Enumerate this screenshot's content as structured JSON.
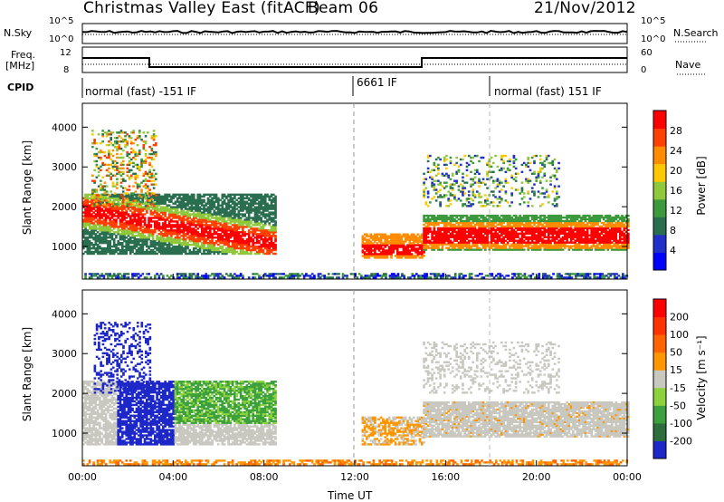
{
  "header": {
    "title": "Christmas Valley East (fitACF)",
    "beam": "Beam 06",
    "date": "21/Nov/2012"
  },
  "top_panel": {
    "left_label": "N.Sky",
    "right_label": "N.Search",
    "left_ticks": [
      "10^5",
      "10^0"
    ],
    "right_ticks": [
      "10^5",
      "10^0"
    ]
  },
  "freq_panel": {
    "left_label_1": "Freq.",
    "left_label_2": "[MHz]",
    "right_label": "Nave",
    "left_ticks": [
      "12",
      "8"
    ],
    "right_ticks": [
      "60",
      "0"
    ]
  },
  "cpid": {
    "label": "CPID",
    "segments": [
      {
        "text": "normal (fast) -151 IF",
        "start_hour": 0
      },
      {
        "text": "6661 IF",
        "start_hour": 12
      },
      {
        "text": "normal (fast) 151 IF",
        "start_hour": 18
      }
    ]
  },
  "chart_data": [
    {
      "type": "heatmap",
      "quantity": "Power",
      "ylabel": "Slant Range [km]",
      "xlabel": "Time UT",
      "x_range_hours": [
        0,
        24
      ],
      "ylim": [
        180,
        4600
      ],
      "yticks": [
        1000,
        2000,
        3000,
        4000
      ],
      "colorbar": {
        "label": "Power [dB]",
        "ticks": [
          "28",
          "24",
          "20",
          "16",
          "12",
          "8",
          "4"
        ],
        "colors": [
          "#0000ff",
          "#2030c8",
          "#2a6e50",
          "#3c9a3c",
          "#90c83c",
          "#ffc800",
          "#ff8c00",
          "#ff4000",
          "#ff0000"
        ]
      }
    },
    {
      "type": "heatmap",
      "quantity": "Velocity",
      "ylabel": "Slant Range [km]",
      "xlabel": "Time UT",
      "x_range_hours": [
        0,
        24
      ],
      "ylim": [
        180,
        4600
      ],
      "yticks": [
        1000,
        2000,
        3000,
        4000
      ],
      "xticks": [
        "00:00",
        "04:00",
        "08:00",
        "12:00",
        "16:00",
        "20:00",
        "00:00"
      ],
      "colorbar": {
        "label": "Velocity [m s⁻¹]",
        "ticks": [
          "200",
          "100",
          "50",
          "15",
          "-15",
          "-50",
          "-100",
          "-200"
        ],
        "colors": [
          "#1e28c8",
          "#2d6e3c",
          "#3ca03c",
          "#8cd23c",
          "#c8c8c0",
          "#ff9600",
          "#ff6400",
          "#ff3200",
          "#ff0000"
        ]
      }
    }
  ]
}
